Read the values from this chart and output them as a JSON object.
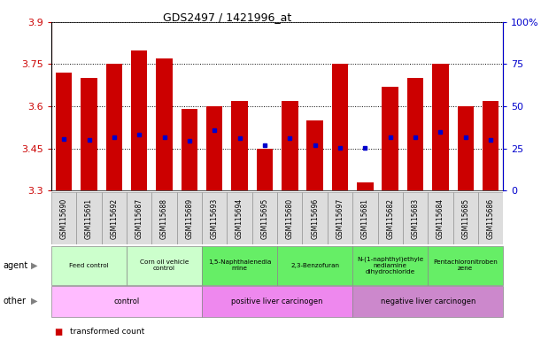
{
  "title": "GDS2497 / 1421996_at",
  "samples": [
    "GSM115690",
    "GSM115691",
    "GSM115692",
    "GSM115687",
    "GSM115688",
    "GSM115689",
    "GSM115693",
    "GSM115694",
    "GSM115695",
    "GSM115680",
    "GSM115696",
    "GSM115697",
    "GSM115681",
    "GSM115682",
    "GSM115683",
    "GSM115684",
    "GSM115685",
    "GSM115686"
  ],
  "transformed_count": [
    3.72,
    3.7,
    3.75,
    3.8,
    3.77,
    3.59,
    3.6,
    3.62,
    3.45,
    3.62,
    3.55,
    3.75,
    3.33,
    3.67,
    3.7,
    3.75,
    3.6,
    3.62
  ],
  "percentile_rank": [
    3.484,
    3.479,
    3.49,
    3.498,
    3.49,
    3.478,
    3.516,
    3.487,
    3.462,
    3.487,
    3.462,
    3.452,
    3.452,
    3.49,
    3.49,
    3.509,
    3.49,
    3.48
  ],
  "ymin": 3.3,
  "ymax": 3.9,
  "yticks_left": [
    3.3,
    3.45,
    3.6,
    3.75,
    3.9
  ],
  "yticks_right_vals": [
    0,
    25,
    50,
    75,
    100
  ],
  "bar_color": "#cc0000",
  "dot_color": "#0000cc",
  "agent_groups": [
    {
      "label": "Feed control",
      "start": 0,
      "end": 3,
      "color": "#ccffcc"
    },
    {
      "label": "Corn oil vehicle\ncontrol",
      "start": 3,
      "end": 6,
      "color": "#ccffcc"
    },
    {
      "label": "1,5-Naphthalenedia\nmine",
      "start": 6,
      "end": 9,
      "color": "#66ee66"
    },
    {
      "label": "2,3-Benzofuran",
      "start": 9,
      "end": 12,
      "color": "#66ee66"
    },
    {
      "label": "N-(1-naphthyl)ethyle\nnediamine\ndihydrochloride",
      "start": 12,
      "end": 15,
      "color": "#66ee66"
    },
    {
      "label": "Pentachloronitroben\nzene",
      "start": 15,
      "end": 18,
      "color": "#66ee66"
    }
  ],
  "other_groups": [
    {
      "label": "control",
      "start": 0,
      "end": 6,
      "color": "#ffbbff"
    },
    {
      "label": "positive liver carcinogen",
      "start": 6,
      "end": 12,
      "color": "#ee88ee"
    },
    {
      "label": "negative liver carcinogen",
      "start": 12,
      "end": 18,
      "color": "#cc88cc"
    }
  ],
  "tick_label_color_left": "#cc0000",
  "tick_label_color_right": "#0000cc"
}
